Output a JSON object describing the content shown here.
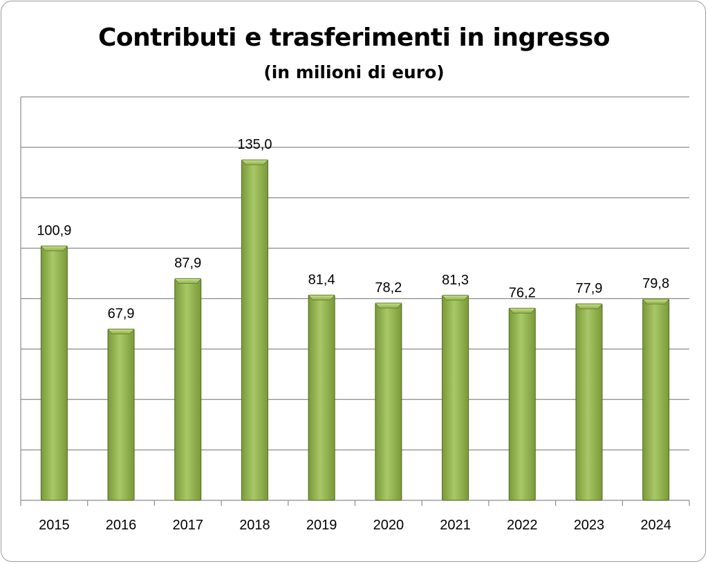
{
  "chart_data": {
    "type": "bar",
    "title": "Contributi e trasferimenti in ingresso",
    "subtitle": "(in milioni di euro)",
    "xlabel": "",
    "ylabel": "",
    "categories": [
      "2015",
      "2016",
      "2017",
      "2018",
      "2019",
      "2020",
      "2021",
      "2022",
      "2023",
      "2024"
    ],
    "values": [
      100.9,
      67.9,
      87.9,
      135.0,
      81.4,
      78.2,
      81.3,
      76.2,
      77.9,
      79.8
    ],
    "data_labels": [
      "100,9",
      "67,9",
      "87,9",
      "135,0",
      "81,4",
      "78,2",
      "81,3",
      "76,2",
      "77,9",
      "79,8"
    ],
    "ylim": [
      0,
      160
    ],
    "y_gridline_step": 20,
    "grid": true,
    "y_tick_labels_shown": false,
    "legend": "none",
    "bar_color": "#7a9a3a",
    "bar_highlight_color": "#a8c868",
    "bar_edge_color": "#4e6a1e"
  }
}
